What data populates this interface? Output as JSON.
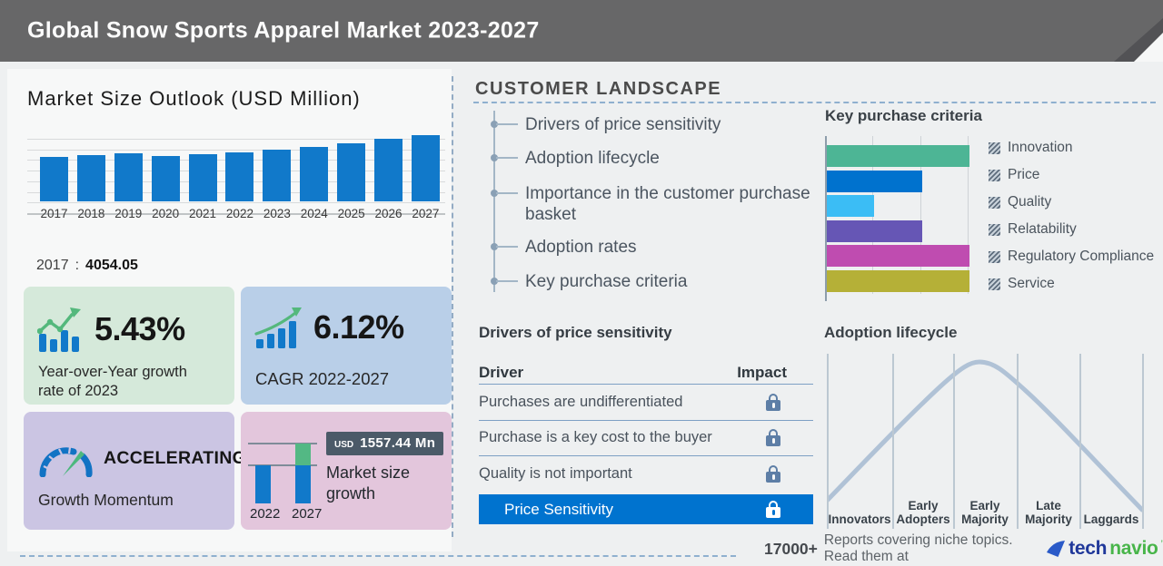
{
  "header": {
    "title": "Global Snow Sports Apparel Market 2023-2027"
  },
  "market_size": {
    "title": "Market Size Outlook (USD Million)",
    "base_year": "2017",
    "separator": ":",
    "base_value": "4054.05"
  },
  "stats": {
    "yoy": {
      "value": "5.43%",
      "label": "Year-over-Year growth rate of 2023"
    },
    "cagr": {
      "value": "6.12%",
      "label": "CAGR 2022-2027"
    },
    "momentum": {
      "value": "ACCELERATING",
      "label": "Growth Momentum"
    },
    "growth": {
      "currency": "USD",
      "amount": "1557.44 Mn",
      "label": "Market size growth",
      "from_year": "2022",
      "to_year": "2027"
    }
  },
  "customer_landscape": {
    "title": "CUSTOMER LANDSCAPE",
    "items": [
      "Drivers of price sensitivity",
      "Adoption lifecycle",
      "Importance in the customer purchase basket",
      "Adoption rates",
      "Key purchase criteria"
    ]
  },
  "price_sensitivity": {
    "title": "Drivers of price sensitivity",
    "columns": [
      "Driver",
      "Impact"
    ],
    "rows": [
      "Purchases are undifferentiated",
      "Purchase is a key cost to the buyer",
      "Quality is not important"
    ],
    "highlight_row": "Price Sensitivity",
    "impact_icon": "lock-icon"
  },
  "footer": {
    "count": "17000+",
    "message": "Reports covering niche topics. Read them at",
    "brand": {
      "part1": "tech",
      "part2": "navio"
    }
  },
  "colors": {
    "accent_blue": "#0073cf",
    "bar_blue": "#1179ca",
    "header_gray": "#676768",
    "green_card": "#d5e9da",
    "blue_card": "#b9cfe8",
    "purple_card": "#cbc5e3",
    "pink_card": "#e3c6dc",
    "lock_slate": "#5d7ea6",
    "curve_gray_blue": "#b0c2d6",
    "tech_navy": "#20389a",
    "navio_green": "#48b54a"
  },
  "chart_data": [
    {
      "id": "market-size-outlook",
      "type": "bar",
      "title": "Market Size Outlook (USD Million)",
      "categories": [
        "2017",
        "2018",
        "2019",
        "2020",
        "2021",
        "2022",
        "2023",
        "2024",
        "2025",
        "2026",
        "2027"
      ],
      "values": [
        4054.05,
        4210,
        4400,
        4145,
        4305,
        4496,
        4740,
        4990,
        5280,
        5680,
        6053
      ],
      "labeled_point": {
        "year": "2017",
        "value": 4054.05
      },
      "ylabel": "USD Million",
      "grid": true,
      "bar_color": "#1179ca"
    },
    {
      "id": "key-purchase-criteria",
      "type": "bar",
      "orientation": "horizontal",
      "title": "Key purchase criteria",
      "categories": [
        "Innovation",
        "Price",
        "Quality",
        "Relatability",
        "Regulatory Compliance",
        "Service"
      ],
      "values": [
        3,
        2,
        1,
        2,
        3,
        3
      ],
      "colors": [
        "#4db595",
        "#0072ce",
        "#3bbdf5",
        "#6656b5",
        "#bf4cb0",
        "#b5b037"
      ],
      "xlim": [
        0,
        3.5
      ],
      "legend_position": "right"
    },
    {
      "id": "adoption-lifecycle",
      "type": "line",
      "title": "Adoption lifecycle",
      "categories": [
        "Innovators",
        "Early Adopters",
        "Early Majority",
        "Late Majority",
        "Laggards"
      ],
      "curve": "bell",
      "relative_heights": [
        0.15,
        0.62,
        1.0,
        0.72,
        0.18
      ],
      "line_color": "#b0c2d6"
    }
  ]
}
